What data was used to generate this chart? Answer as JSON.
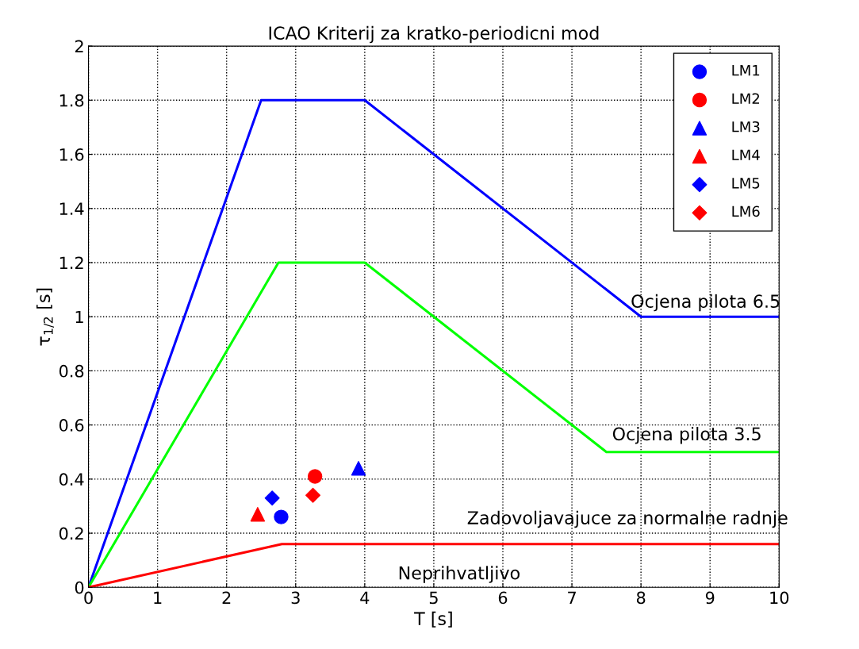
{
  "chart_data": {
    "type": "line",
    "title": "ICAO Kriterij za kratko-periodicni mod",
    "xlabel": "T [s]",
    "ylabel": "τ$_{1/2}$ [s]",
    "xlim": [
      0,
      10
    ],
    "ylim": [
      0,
      2
    ],
    "xticks": [
      0,
      1,
      2,
      3,
      4,
      5,
      6,
      7,
      8,
      9,
      10
    ],
    "yticks": [
      0,
      0.2,
      0.4,
      0.6,
      0.8,
      1,
      1.2,
      1.4,
      1.6,
      1.8,
      2
    ],
    "grid": true,
    "legend": "top right",
    "series": [
      {
        "color": "#0000ff",
        "x": [
          0,
          2.5,
          4,
          8,
          10
        ],
        "values": [
          0,
          1.8,
          1.8,
          1.0,
          1.0
        ]
      },
      {
        "color": "#00ff00",
        "x": [
          0,
          2.75,
          4,
          7.5,
          10
        ],
        "values": [
          0,
          1.2,
          1.2,
          0.5,
          0.5
        ]
      },
      {
        "color": "#ff0000",
        "x": [
          0,
          2.8,
          10
        ],
        "values": [
          0,
          0.16,
          0.16
        ]
      },
      {
        "type": "scatter",
        "name": "LM1",
        "color": "#0000ff",
        "marker": "circle",
        "x": [
          2.79
        ],
        "values": [
          0.26
        ]
      },
      {
        "type": "scatter",
        "name": "LM2",
        "color": "#ff0000",
        "marker": "circle",
        "x": [
          3.28
        ],
        "values": [
          0.41
        ]
      },
      {
        "type": "scatter",
        "name": "LM3",
        "color": "#0000ff",
        "marker": "triangle",
        "x": [
          3.91
        ],
        "values": [
          0.44
        ]
      },
      {
        "type": "scatter",
        "name": "LM4",
        "color": "#ff0000",
        "marker": "triangle",
        "x": [
          2.45
        ],
        "values": [
          0.27
        ]
      },
      {
        "type": "scatter",
        "name": "LM5",
        "color": "#0000ff",
        "marker": "diamond",
        "x": [
          2.66
        ],
        "values": [
          0.33
        ]
      },
      {
        "type": "scatter",
        "name": "LM6",
        "color": "#ff0000",
        "marker": "diamond",
        "x": [
          3.25
        ],
        "values": [
          0.34
        ]
      }
    ],
    "annotations": [
      "Ocjena pilota 6.5",
      "Ocjena pilota 3.5",
      "Zadovoljavajuce za normalne radnje",
      "Neprihvatljivo"
    ]
  }
}
